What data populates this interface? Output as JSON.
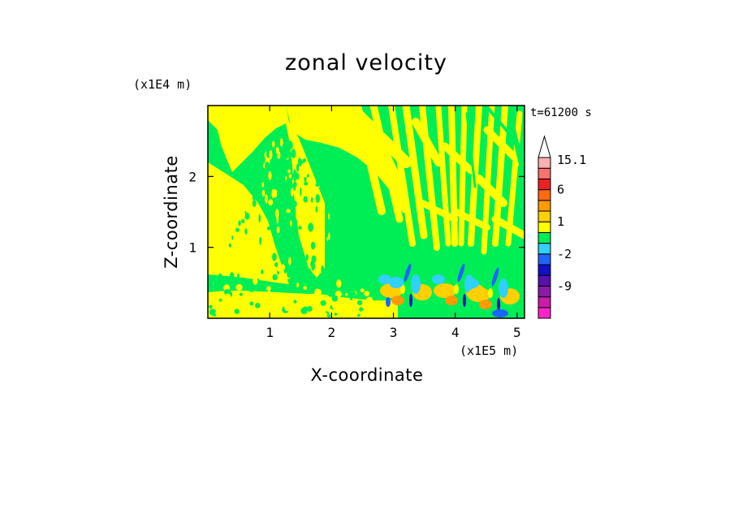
{
  "chart_data": {
    "type": "heatmap",
    "title": "zonal velocity",
    "time_label": "t=61200 s",
    "xlabel": "X-coordinate",
    "ylabel": "Z-coordinate",
    "x_unit": "(x1E5 m)",
    "y_unit": "(x1E4 m)",
    "xlim": [
      0,
      5.12
    ],
    "ylim": [
      0,
      3.0
    ],
    "x_ticks": [
      1,
      2,
      3,
      4,
      5
    ],
    "y_ticks": [
      1,
      2
    ],
    "x_tick_labels": [
      "1",
      "2",
      "3",
      "4",
      "5"
    ],
    "y_tick_labels": [
      "1",
      "2"
    ],
    "colorbar": {
      "labels": [
        "15.1",
        "6",
        "1",
        "-2",
        "-9"
      ],
      "levels": [
        {
          "label": "",
          "color": "#ff22cc"
        },
        {
          "label": "",
          "color": "#cc1aaa"
        },
        {
          "label": "-9",
          "color": "#8a1aa8"
        },
        {
          "label": "",
          "color": "#5a10b0"
        },
        {
          "label": "",
          "color": "#1010c8"
        },
        {
          "label": "-2",
          "color": "#1e64ff"
        },
        {
          "label": "",
          "color": "#30d0ff"
        },
        {
          "label": "",
          "color": "#00ee55"
        },
        {
          "label": "1",
          "color": "#ffff00"
        },
        {
          "label": "",
          "color": "#ffd000"
        },
        {
          "label": "",
          "color": "#ff9a00"
        },
        {
          "label": "6",
          "color": "#ff6a10"
        },
        {
          "label": "",
          "color": "#ee2020"
        },
        {
          "label": "",
          "color": "#ff7070"
        },
        {
          "label": "15.1",
          "color": "#ffb0b0"
        },
        {
          "label": "",
          "color": "#ffffff"
        }
      ]
    },
    "field_colors": {
      "green": "#00ee55",
      "yellow": "#ffff00",
      "orange": "#ffd000",
      "deep_orange": "#ff9a00",
      "cyan": "#30d0ff",
      "blue": "#1e64ff",
      "dark_blue": "#1010c8"
    }
  }
}
